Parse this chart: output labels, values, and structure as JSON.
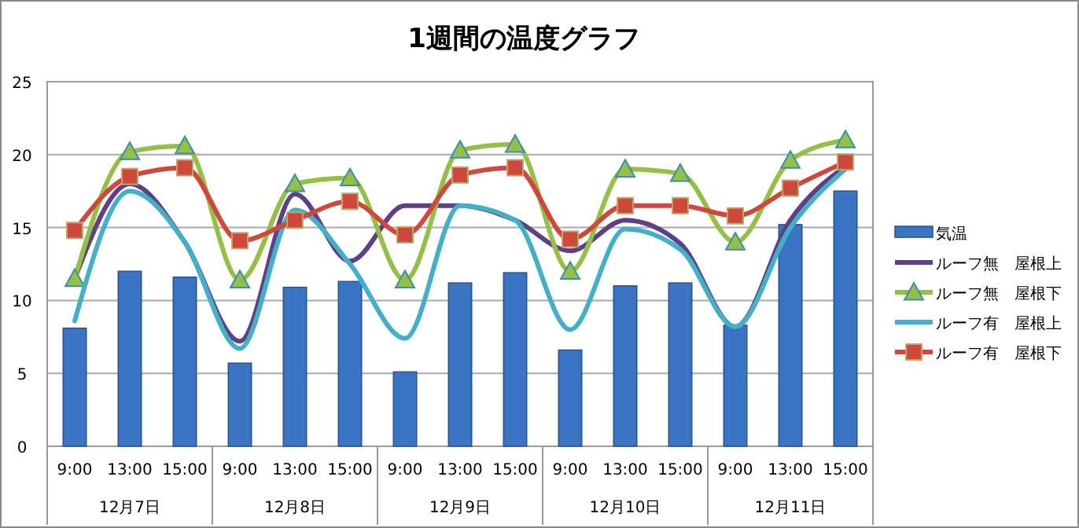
{
  "chart_data": {
    "type": "bar",
    "title": "1週間の温度グラフ",
    "categories": [
      "9:00",
      "13:00",
      "15:00",
      "9:00",
      "13:00",
      "15:00",
      "9:00",
      "13:00",
      "15:00",
      "9:00",
      "13:00",
      "15:00",
      "9:00",
      "13:00",
      "15:00"
    ],
    "annotations": [
      "12月7日",
      "12月8日",
      "12月9日",
      "12月10日",
      "12月11日"
    ],
    "series": [
      {
        "name": "気温",
        "color": "#3a74c2",
        "values": [
          8.1,
          12.0,
          11.6,
          5.7,
          10.9,
          11.3,
          5.1,
          11.2,
          11.9,
          6.6,
          11.0,
          11.2,
          8.3,
          15.2,
          17.5
        ]
      },
      {
        "name": "ルーフ無　屋根上",
        "type": "line",
        "color": "#5e3f88",
        "marker": "none",
        "values": [
          11.5,
          18.0,
          14.0,
          7.2,
          17.3,
          12.7,
          16.5,
          16.5,
          15.5,
          13.4,
          15.5,
          13.9,
          8.2,
          15.5,
          19.2
        ]
      },
      {
        "name": "ルーフ無　屋根下",
        "type": "line",
        "color": "#94c045",
        "marker": "triangle",
        "values": [
          11.5,
          20.2,
          20.6,
          11.4,
          18.0,
          18.4,
          11.4,
          20.3,
          20.7,
          12.0,
          19.0,
          18.7,
          14.0,
          19.6,
          21.0
        ]
      },
      {
        "name": "ルーフ有　屋根上",
        "type": "line",
        "color": "#42b0c8",
        "marker": "none",
        "values": [
          8.6,
          17.5,
          14.0,
          6.7,
          16.2,
          12.5,
          7.4,
          16.5,
          15.5,
          8.0,
          14.9,
          13.5,
          8.2,
          15.0,
          19.0
        ]
      },
      {
        "name": "ルーフ有　屋根下",
        "type": "line",
        "color": "#d0473c",
        "marker": "square",
        "values": [
          14.8,
          18.5,
          19.1,
          14.1,
          15.5,
          16.8,
          14.5,
          18.6,
          19.1,
          14.2,
          16.5,
          16.5,
          15.8,
          17.7,
          19.5
        ]
      }
    ],
    "ylim": [
      0,
      25
    ],
    "yticks": [
      0,
      5,
      10,
      15,
      20,
      25
    ],
    "grid": "y",
    "legend": "right"
  }
}
